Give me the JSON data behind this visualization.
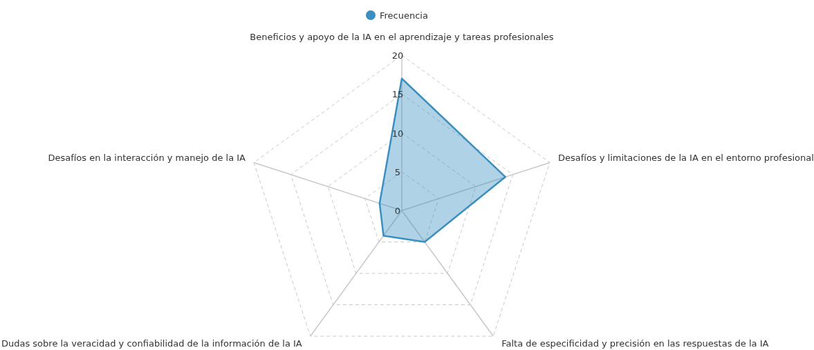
{
  "chart_data": {
    "type": "radar",
    "categories": [
      "Beneficios y apoyo de la IA en el aprendizaje y tareas profesionales",
      "Desafíos y limitaciones de la IA en el entorno profesional",
      "Falta de especificidad y precisión en las respuestas de la IA",
      "Dudas sobre la veracidad y confiabilidad de la información de la IA",
      "Desafíos en la interacción y manejo de la IA"
    ],
    "series": [
      {
        "name": "Frecuencia",
        "color": "#3a8fc0",
        "values": [
          17,
          14,
          5,
          4,
          3
        ]
      }
    ],
    "ylim": [
      0,
      20
    ],
    "yticks": [
      0,
      5,
      10,
      15,
      20
    ],
    "grid": true,
    "legend": "top",
    "marker": "none",
    "line_style": "solid"
  }
}
